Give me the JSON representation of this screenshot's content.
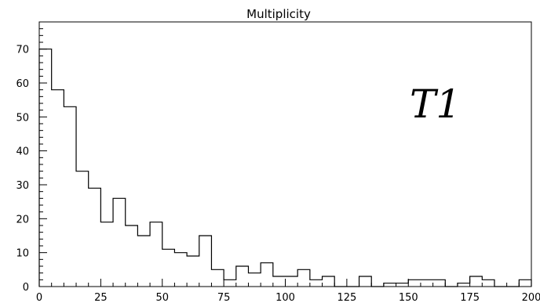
{
  "chart_data": {
    "type": "histogram",
    "title": "Multiplicity",
    "xlabel": "",
    "ylabel": "",
    "annotation": "T1",
    "xlim": [
      0,
      200
    ],
    "ylim": [
      0,
      78
    ],
    "bin_width": 5,
    "x_ticks": [
      0,
      25,
      50,
      75,
      100,
      125,
      150,
      175,
      200
    ],
    "x_tick_labels": [
      "0",
      "25",
      "50",
      "75",
      "100",
      "125",
      "150",
      "175",
      "200"
    ],
    "y_ticks": [
      0,
      10,
      20,
      30,
      40,
      50,
      60,
      70
    ],
    "y_tick_labels": [
      "0",
      "10",
      "20",
      "30",
      "40",
      "50",
      "60",
      "70"
    ],
    "grid": false,
    "legend": "none",
    "bins": [
      0,
      5,
      10,
      15,
      20,
      25,
      30,
      35,
      40,
      45,
      50,
      55,
      60,
      65,
      70,
      75,
      80,
      85,
      90,
      95,
      100,
      105,
      110,
      115,
      120,
      125,
      130,
      135,
      140,
      145,
      150,
      155,
      160,
      165,
      170,
      175,
      180,
      185,
      190,
      195
    ],
    "values": [
      70,
      58,
      53,
      34,
      29,
      19,
      26,
      18,
      15,
      19,
      11,
      10,
      9,
      15,
      5,
      2,
      6,
      4,
      7,
      3,
      3,
      5,
      2,
      3,
      0,
      0,
      3,
      0,
      1,
      1,
      2,
      2,
      2,
      0,
      1,
      3,
      2,
      0,
      0,
      2
    ]
  }
}
